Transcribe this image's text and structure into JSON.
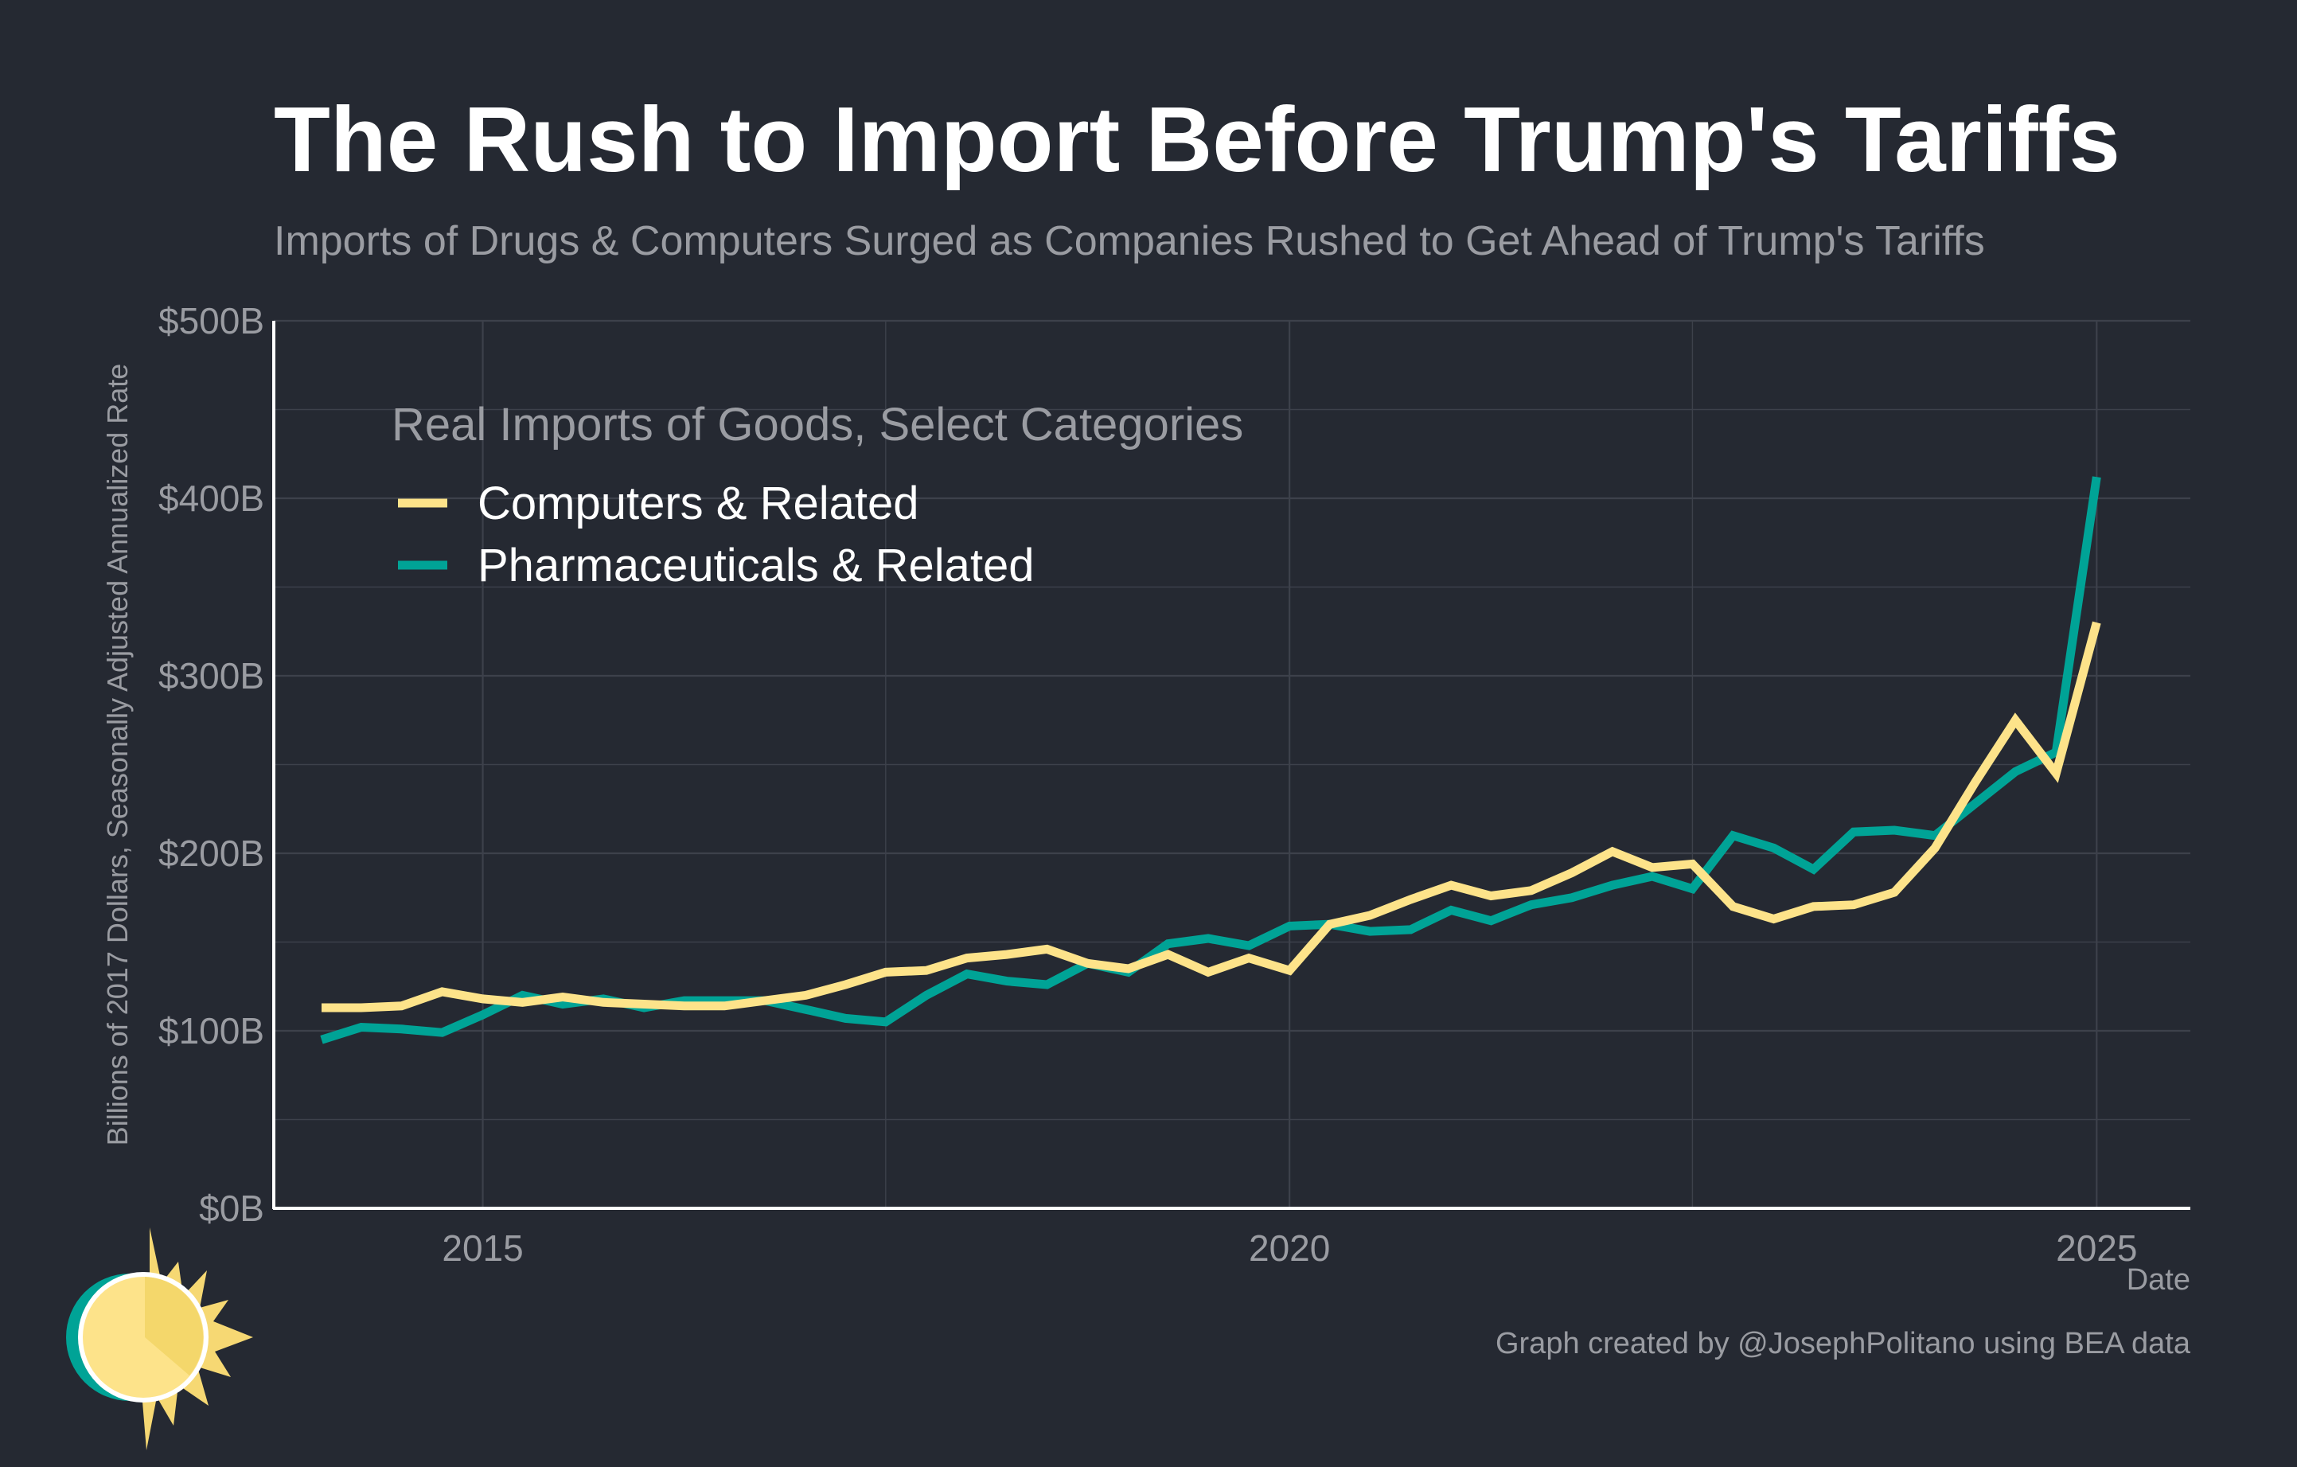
{
  "colors": {
    "background": "#252932",
    "title": "#ffffff",
    "subtitle": "#9a9ca2",
    "axis_text": "#9a9ca2",
    "grid": "#3d414b",
    "axis_line": "#ffffff",
    "legend_title": "#9a9ca2",
    "legend_text": "#ffffff",
    "computers": "#fde38a",
    "pharma": "#00a396",
    "logo_ring": "#00a396",
    "logo_sun": "#fde38a",
    "logo_rays": "#f6d873"
  },
  "icons": {
    "logo": "sun-logo-icon"
  },
  "chart_data": {
    "type": "line",
    "title": "The Rush to Import Before Trump's Tariffs",
    "subtitle": "Imports of Drugs & Computers Surged as Companies Rushed to Get Ahead of Trump's Tariffs",
    "ylabel": "Billions of 2017 Dollars, Seasonally Adjusted Annualized Rate",
    "xlabel": "Date",
    "ylim": [
      0,
      500
    ],
    "y_ticks": [
      0,
      100,
      200,
      300,
      400,
      500
    ],
    "y_tick_labels": [
      "$0B",
      "$100B",
      "$200B",
      "$300B",
      "$400B",
      "$500B"
    ],
    "x_ticks": [
      "2015",
      "2020",
      "2025"
    ],
    "xlim": [
      "2013-09-15",
      "2025-08-01"
    ],
    "grid": true,
    "legend": {
      "title": "Real Imports of Goods, Select Categories",
      "placement": "top-left"
    },
    "caption": "Graph created by @JosephPolitano using BEA data",
    "x": [
      "2014-01-01",
      "2014-04-01",
      "2014-07-01",
      "2014-10-01",
      "2015-01-01",
      "2015-04-01",
      "2015-07-01",
      "2015-10-01",
      "2016-01-01",
      "2016-04-01",
      "2016-07-01",
      "2016-10-01",
      "2017-01-01",
      "2017-04-01",
      "2017-07-01",
      "2017-10-01",
      "2018-01-01",
      "2018-04-01",
      "2018-07-01",
      "2018-10-01",
      "2019-01-01",
      "2019-04-01",
      "2019-07-01",
      "2019-10-01",
      "2020-01-01",
      "2020-04-01",
      "2020-07-01",
      "2020-10-01",
      "2021-01-01",
      "2021-04-01",
      "2021-07-01",
      "2021-10-01",
      "2022-01-01",
      "2022-04-01",
      "2022-07-01",
      "2022-10-01",
      "2023-01-01",
      "2023-04-01",
      "2023-07-01",
      "2023-10-01",
      "2024-01-01",
      "2024-04-01",
      "2024-07-01",
      "2024-10-01",
      "2025-01-01"
    ],
    "series": [
      {
        "name": "Computers & Related",
        "color": "#fde38a",
        "values": [
          113,
          113,
          114,
          122,
          118,
          116,
          119,
          116,
          115,
          114,
          114,
          117,
          120,
          126,
          133,
          134,
          141,
          143,
          146,
          138,
          135,
          143,
          133,
          141,
          134,
          160,
          165,
          174,
          182,
          176,
          179,
          189,
          201,
          192,
          194,
          170,
          163,
          170,
          171,
          178,
          203,
          240,
          275,
          245,
          330
        ]
      },
      {
        "name": "Pharmaceuticals & Related",
        "color": "#00a396",
        "values": [
          95,
          102,
          101,
          99,
          109,
          120,
          115,
          118,
          113,
          117,
          117,
          117,
          112,
          107,
          105,
          120,
          132,
          128,
          126,
          138,
          133,
          149,
          152,
          148,
          159,
          160,
          156,
          157,
          168,
          162,
          171,
          175,
          182,
          187,
          180,
          210,
          203,
          191,
          212,
          213,
          210,
          228,
          246,
          257,
          412
        ]
      }
    ]
  }
}
